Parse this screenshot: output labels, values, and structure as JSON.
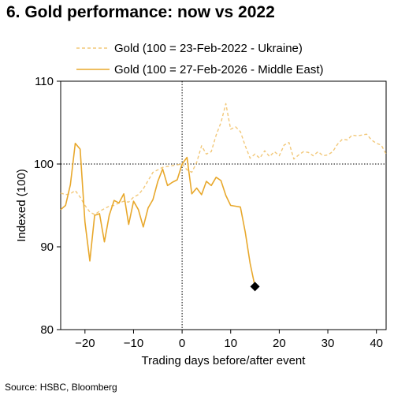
{
  "title": "6. Gold performance: now vs 2022",
  "source": "Source: HSBC, Bloomberg",
  "colors": {
    "series1": "#f2c879",
    "series2": "#e8a82c",
    "marker": "#000000",
    "grid": "#000000"
  },
  "chart_data": {
    "type": "line",
    "xlabel": "Trading days before/after event",
    "ylabel": "Indexed (100)",
    "xlim": [
      -25,
      42
    ],
    "ylim": [
      80,
      110
    ],
    "xticks": [
      -20,
      -10,
      0,
      10,
      20,
      30,
      40
    ],
    "yticks": [
      80,
      90,
      100,
      110
    ],
    "xtick_labels": [
      "−20",
      "−10",
      "0",
      "10",
      "20",
      "30",
      "40"
    ],
    "ytick_labels": [
      "80",
      "90",
      "100",
      "110"
    ],
    "reference_lines": {
      "x": 0,
      "y": 100
    },
    "legend_position": "top-right",
    "series": [
      {
        "name": "Gold (100 = 23-Feb-2022 - Ukraine)",
        "style": "dashed",
        "x": [
          -25,
          -24,
          -23,
          -22,
          -21,
          -20,
          -19,
          -18,
          -17,
          -16,
          -15,
          -14,
          -13,
          -12,
          -11,
          -10,
          -9,
          -8,
          -7,
          -6,
          -5,
          -4,
          -3,
          -2,
          -1,
          0,
          1,
          2,
          3,
          4,
          5,
          6,
          7,
          8,
          9,
          10,
          11,
          12,
          13,
          14,
          15,
          16,
          17,
          18,
          19,
          20,
          21,
          22,
          23,
          24,
          25,
          26,
          27,
          28,
          29,
          30,
          31,
          32,
          33,
          34,
          35,
          36,
          37,
          38,
          39,
          40,
          41,
          42
        ],
        "y": [
          96.5,
          96.3,
          96.4,
          96.8,
          96.0,
          95.0,
          94.2,
          93.9,
          94.3,
          94.6,
          94.9,
          95.0,
          95.3,
          95.5,
          95.4,
          96.0,
          96.3,
          97.0,
          98.0,
          99.0,
          99.3,
          99.6,
          99.7,
          99.8,
          99.9,
          100.0,
          99.3,
          99.0,
          100.2,
          102.2,
          101.2,
          101.5,
          103.5,
          105.0,
          107.3,
          104.2,
          104.5,
          103.9,
          102.2,
          100.7,
          101.2,
          100.7,
          101.6,
          100.9,
          101.5,
          101.0,
          102.3,
          102.6,
          100.6,
          101.1,
          101.5,
          101.4,
          101.0,
          101.5,
          101.0,
          101.1,
          101.5,
          102.4,
          103.0,
          102.9,
          103.5,
          103.4,
          103.5,
          103.6,
          102.9,
          102.5,
          102.3,
          101.2
        ]
      },
      {
        "name": "Gold (100 = 27-Feb-2026 - Middle East)",
        "style": "solid",
        "x": [
          -25,
          -24,
          -23,
          -22,
          -21,
          -20,
          -19,
          -18,
          -17,
          -16,
          -15,
          -14,
          -13,
          -12,
          -11,
          -10,
          -9,
          -8,
          -7,
          -6,
          -5,
          -4,
          -3,
          -2,
          -1,
          0,
          1,
          2,
          3,
          4,
          5,
          6,
          7,
          8,
          9,
          10,
          11,
          12,
          13,
          14,
          15
        ],
        "y": [
          94.5,
          95.0,
          97.5,
          102.5,
          101.8,
          93.0,
          88.3,
          93.8,
          94.0,
          90.6,
          93.8,
          95.6,
          95.3,
          96.4,
          92.7,
          95.5,
          94.5,
          92.4,
          94.7,
          95.7,
          97.9,
          99.4,
          97.4,
          97.8,
          98.1,
          100.0,
          100.8,
          96.4,
          97.1,
          96.3,
          97.9,
          97.4,
          98.4,
          98.0,
          96.2,
          95.0,
          94.9,
          94.8,
          91.8,
          88.0,
          85.2
        ],
        "end_marker": {
          "x": 15,
          "y": 85.2,
          "shape": "diamond"
        }
      }
    ]
  }
}
